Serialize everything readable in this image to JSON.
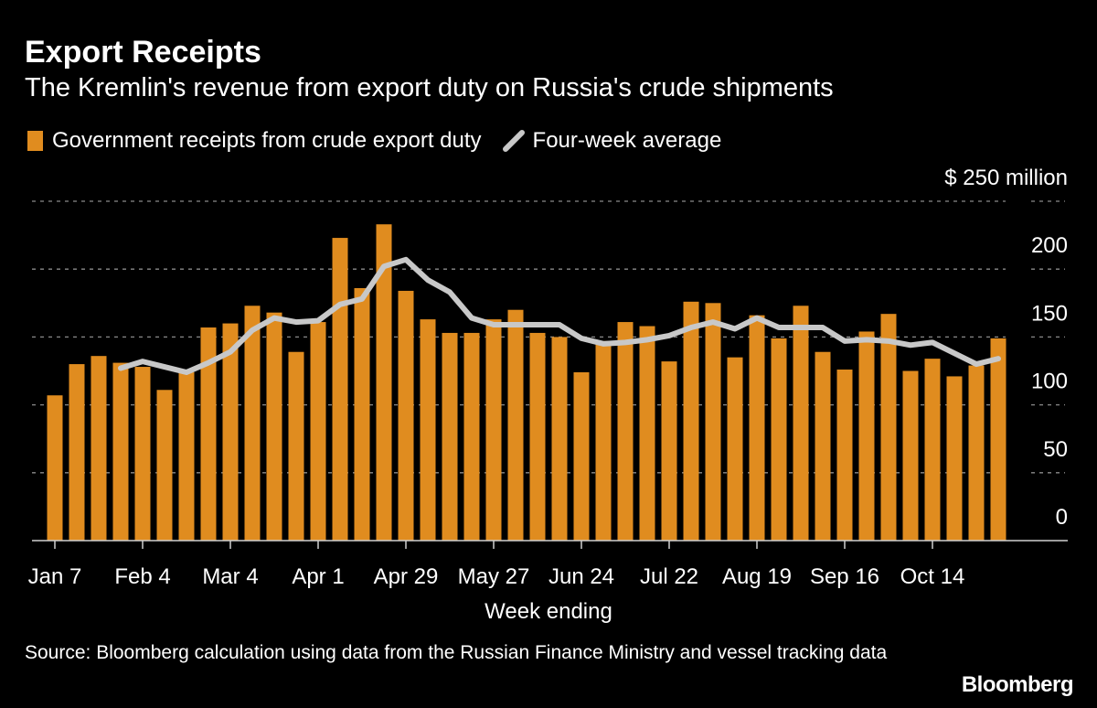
{
  "title": "Export Receipts",
  "subtitle": "The Kremlin's revenue from export duty on Russia's crude shipments",
  "legend": {
    "bars": "Government receipts from crude export duty",
    "line": "Four-week average"
  },
  "source": "Source: Bloomberg calculation using data from the Russian Finance Ministry and vessel tracking data",
  "logo": "Bloomberg",
  "colors": {
    "bar": "#e08c1f",
    "line": "#c8c8c8",
    "background": "#000000",
    "grid": "#8a8a8a"
  },
  "chart_data": {
    "type": "bar",
    "xlabel": "Week ending",
    "ylabel": "",
    "yunit_label": "$ 250 million",
    "ylim": [
      0,
      250
    ],
    "yticks": [
      0,
      50,
      100,
      150,
      200,
      250
    ],
    "ytick_labels": [
      "0",
      "50",
      "100",
      "150",
      "200",
      "$ 250 million"
    ],
    "grid": true,
    "legend_placement": "top-left",
    "xtick_labels": [
      {
        "week": 1,
        "label": "Jan 7"
      },
      {
        "week": 5,
        "label": "Feb 4"
      },
      {
        "week": 9,
        "label": "Mar 4"
      },
      {
        "week": 13,
        "label": "Apr 1"
      },
      {
        "week": 17,
        "label": "Apr 29"
      },
      {
        "week": 21,
        "label": "May 27"
      },
      {
        "week": 25,
        "label": "Jun 24"
      },
      {
        "week": 29,
        "label": "Jul 22"
      },
      {
        "week": 33,
        "label": "Aug 19"
      },
      {
        "week": 37,
        "label": "Sep 16"
      },
      {
        "week": 41,
        "label": "Oct 14"
      }
    ],
    "series": [
      {
        "name": "Government receipts from crude export duty",
        "type": "bar",
        "values": [
          107,
          130,
          136,
          131,
          128,
          111,
          124,
          157,
          160,
          173,
          168,
          139,
          161,
          223,
          186,
          233,
          184,
          163,
          153,
          153,
          163,
          170,
          153,
          150,
          124,
          147,
          161,
          158,
          132,
          176,
          175,
          135,
          166,
          149,
          173,
          139,
          126,
          154,
          167,
          125,
          134,
          121,
          129,
          149
        ]
      },
      {
        "name": "Four-week average",
        "type": "line",
        "values": [
          null,
          null,
          null,
          127,
          132,
          128,
          124,
          131,
          139,
          155,
          164,
          161,
          162,
          174,
          178,
          202,
          207,
          192,
          183,
          164,
          159,
          159,
          159,
          159,
          149,
          145,
          146,
          148,
          151,
          157,
          161,
          156,
          164,
          157,
          157,
          157,
          147,
          148,
          147,
          144,
          146,
          138,
          130,
          134
        ]
      }
    ]
  }
}
